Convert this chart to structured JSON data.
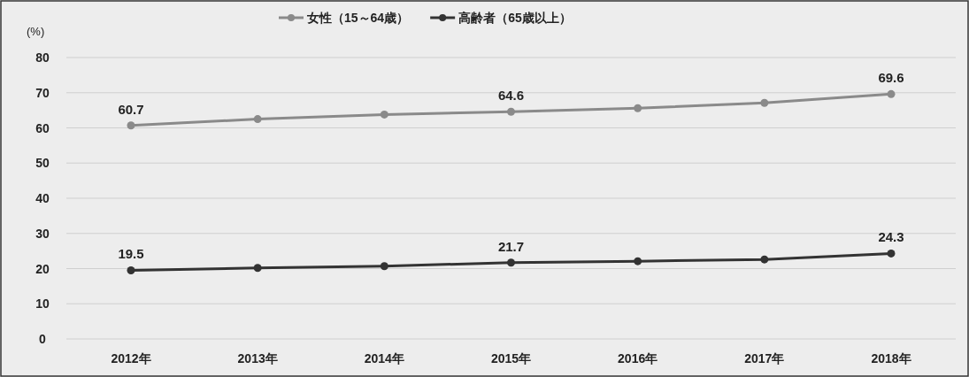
{
  "chart_data": {
    "type": "line",
    "ylabel": "(%)",
    "categories": [
      "2012年",
      "2013年",
      "2014年",
      "2015年",
      "2016年",
      "2017年",
      "2018年"
    ],
    "series": [
      {
        "name": "女性（15～64歳）",
        "color": "#8a8a8a",
        "values": [
          60.7,
          62.5,
          63.8,
          64.6,
          65.6,
          67.1,
          69.6
        ],
        "value_labels": [
          "60.7",
          null,
          null,
          "64.6",
          null,
          null,
          "69.6"
        ]
      },
      {
        "name": "高齢者（65歳以上）",
        "color": "#333333",
        "values": [
          19.5,
          20.2,
          20.7,
          21.7,
          22.1,
          22.6,
          24.3
        ],
        "value_labels": [
          "19.5",
          null,
          null,
          "21.7",
          null,
          null,
          "24.3"
        ]
      }
    ],
    "ylim": [
      0,
      80
    ],
    "yticks": [
      0,
      10,
      20,
      30,
      40,
      50,
      60,
      70,
      80
    ],
    "grid": "y",
    "legend": "top",
    "marker": "circle",
    "line_style": "solid"
  }
}
